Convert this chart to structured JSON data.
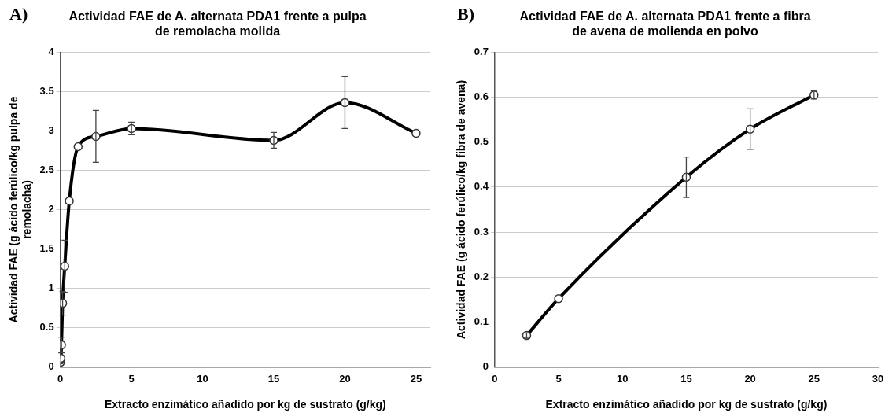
{
  "chart_data": [
    {
      "type": "line",
      "title": "Actividad FAE de A. alternata PDA1 frente a pulpa de remolacha molida",
      "xlabel": "Extracto enzimático añadido por kg de sustrato (g/kg)",
      "ylabel": "Actividad FAE (g ácido ferúlico/kg pulpa de remolacha)",
      "annotations": [
        "A)"
      ],
      "x": [
        0.01,
        0.02,
        0.04,
        0.08,
        0.16,
        0.31,
        0.63,
        1.25,
        2.5,
        5,
        15,
        20,
        25
      ],
      "series": [
        {
          "color": "#000000",
          "values": [
            0.06,
            0.09,
            0.11,
            0.28,
            0.81,
            1.28,
            2.11,
            2.8,
            2.93,
            3.03,
            2.88,
            3.36,
            2.97
          ],
          "errors": [
            null,
            null,
            null,
            0.1,
            0.15,
            0.33,
            null,
            null,
            0.33,
            0.08,
            0.1,
            0.33,
            null
          ]
        }
      ],
      "xlim": [
        0,
        26
      ],
      "xticks": [
        0,
        5,
        10,
        15,
        20,
        25
      ],
      "ylim": [
        0,
        4
      ],
      "yticks": [
        0,
        0.5,
        1,
        1.5,
        2,
        2.5,
        3,
        3.5,
        4
      ],
      "grid": "y",
      "legend": false,
      "marker": "circle",
      "line_style": "solid"
    },
    {
      "type": "line",
      "title": "Actividad FAE de A. alternata PDA1 frente a fibra de avena de molienda en polvo",
      "xlabel": "Extracto enzimático añadido por kg de sustrato (g/kg)",
      "ylabel": "Actividad FAE (g ácido ferúlico/kg fibra de avena)",
      "annotations": [
        "B)"
      ],
      "x": [
        2.5,
        5,
        15,
        20,
        25
      ],
      "series": [
        {
          "color": "#000000",
          "values": [
            0.07,
            0.152,
            0.422,
            0.529,
            0.605
          ],
          "errors": [
            0.006,
            null,
            0.045,
            0.045,
            0.009
          ]
        }
      ],
      "xlim": [
        0,
        30
      ],
      "xticks": [
        0,
        5,
        10,
        15,
        20,
        25,
        30
      ],
      "ylim": [
        0,
        0.7
      ],
      "yticks": [
        0,
        0.1,
        0.2,
        0.3,
        0.4,
        0.5,
        0.6,
        0.7
      ],
      "grid": "y",
      "legend": false,
      "marker": "circle",
      "line_style": "solid"
    }
  ]
}
